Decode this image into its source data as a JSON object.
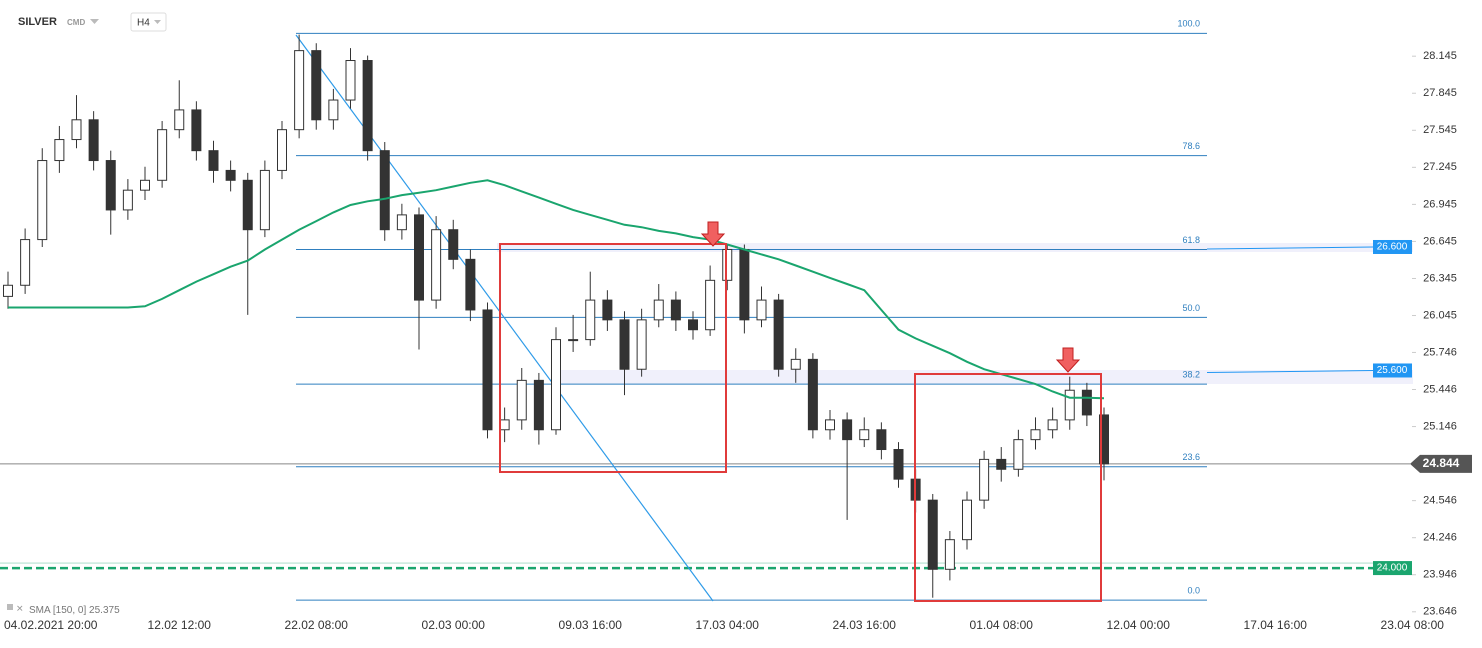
{
  "chart_data": {
    "type": "candlestick",
    "symbol": "SILVER",
    "market": "CMD",
    "timeframe": "H4",
    "x": [
      null,
      null,
      "04.02.2021 20:00",
      null,
      null,
      null,
      null,
      null,
      null,
      null,
      "12.02 12:00",
      null,
      null,
      null,
      null,
      null,
      null,
      null,
      "22.02 08:00",
      null,
      null,
      null,
      null,
      null,
      null,
      null,
      "02.03 00:00",
      null,
      null,
      null,
      null,
      null,
      null,
      null,
      "09.03 16:00",
      null,
      null,
      null,
      null,
      null,
      null,
      null,
      "17.03 04:00",
      null,
      null,
      null,
      null,
      null,
      null,
      null,
      "24.03 16:00",
      null,
      null,
      null,
      null,
      null,
      null,
      null,
      "01.04 08:00",
      null,
      null,
      null,
      null,
      null,
      null,
      null,
      "12.04 00:00",
      null,
      null,
      null,
      null,
      null,
      null,
      null,
      "17.04 16:00",
      null,
      null,
      null,
      null,
      null,
      null,
      null,
      "23.04 08:00"
    ],
    "open": [
      26.2,
      26.29,
      26.66,
      27.3,
      27.47,
      27.63,
      27.3,
      26.9,
      27.06,
      27.14,
      27.55,
      27.71,
      27.38,
      27.22,
      27.14,
      26.74,
      27.22,
      27.55,
      28.19,
      27.63,
      27.79,
      28.11,
      27.38,
      26.74,
      26.86,
      26.17,
      26.74,
      26.5,
      26.09,
      25.12,
      25.2,
      25.52,
      25.12,
      25.85,
      25.85,
      26.17,
      26.01,
      25.61,
      26.01,
      26.17,
      26.01,
      25.93,
      26.33,
      26.58,
      26.01,
      26.17,
      25.61,
      25.69,
      25.12,
      25.2,
      25.04,
      25.12,
      24.96,
      24.72,
      24.55,
      23.99,
      24.23,
      24.55,
      24.88,
      24.8,
      25.04,
      25.12,
      25.2,
      25.44,
      25.24,
      null,
      null,
      null,
      null,
      null,
      null,
      null,
      null,
      null,
      null,
      null,
      null,
      null,
      null,
      null,
      null,
      null,
      null
    ],
    "high": [
      26.4,
      26.75,
      27.4,
      27.58,
      27.83,
      27.7,
      27.38,
      27.15,
      27.25,
      27.62,
      27.95,
      27.78,
      27.46,
      27.3,
      27.2,
      27.3,
      27.62,
      28.32,
      28.25,
      27.88,
      28.21,
      28.15,
      27.45,
      26.95,
      26.92,
      26.85,
      26.82,
      26.58,
      26.15,
      25.3,
      25.62,
      25.58,
      25.95,
      26.05,
      26.4,
      26.25,
      26.08,
      26.1,
      26.3,
      26.24,
      26.08,
      26.45,
      26.62,
      26.62,
      26.28,
      26.22,
      25.78,
      25.74,
      25.28,
      25.26,
      25.22,
      25.18,
      25.02,
      24.8,
      24.6,
      24.3,
      24.62,
      24.95,
      24.98,
      25.12,
      25.22,
      25.3,
      25.55,
      25.5,
      25.3,
      null,
      null,
      null,
      null,
      null,
      null,
      null,
      null,
      null,
      null,
      null,
      null,
      null,
      null,
      null,
      null,
      null,
      null
    ],
    "low": [
      26.1,
      26.22,
      26.6,
      27.2,
      27.4,
      27.22,
      26.7,
      26.82,
      26.98,
      27.08,
      27.48,
      27.3,
      27.12,
      27.05,
      26.05,
      26.68,
      27.15,
      27.48,
      27.55,
      27.55,
      27.72,
      27.3,
      26.65,
      26.66,
      25.77,
      26.1,
      26.42,
      26.0,
      25.05,
      25.02,
      25.12,
      25.0,
      25.08,
      25.75,
      25.8,
      25.92,
      25.4,
      25.55,
      25.95,
      25.92,
      25.85,
      25.88,
      26.25,
      25.9,
      25.95,
      25.55,
      25.5,
      25.05,
      25.04,
      24.39,
      24.98,
      24.88,
      24.65,
      24.45,
      23.76,
      23.9,
      24.15,
      24.48,
      24.7,
      24.74,
      24.96,
      25.05,
      25.12,
      25.15,
      24.71,
      null,
      null,
      null,
      null,
      null,
      null,
      null,
      null,
      null,
      null,
      null,
      null,
      null,
      null,
      null,
      null,
      null,
      null
    ],
    "close": [
      26.29,
      26.66,
      27.3,
      27.47,
      27.63,
      27.3,
      26.9,
      27.06,
      27.14,
      27.55,
      27.71,
      27.38,
      27.22,
      27.14,
      26.74,
      27.22,
      27.55,
      28.19,
      27.63,
      27.79,
      28.11,
      27.38,
      26.74,
      26.86,
      26.17,
      26.74,
      26.5,
      26.09,
      25.12,
      25.2,
      25.52,
      25.12,
      25.85,
      25.85,
      26.17,
      26.01,
      25.61,
      26.01,
      26.17,
      26.01,
      25.93,
      26.33,
      26.58,
      26.01,
      26.17,
      25.61,
      25.69,
      25.12,
      25.2,
      25.04,
      25.12,
      24.96,
      24.72,
      24.55,
      23.99,
      24.23,
      24.55,
      24.88,
      24.8,
      25.04,
      25.12,
      25.2,
      25.44,
      25.24,
      24.844,
      null,
      null,
      null,
      null,
      null,
      null,
      null,
      null,
      null,
      null,
      null,
      null,
      null,
      null,
      null,
      null,
      null,
      null
    ],
    "up_color": "#ffffff",
    "down_color": "#333333",
    "ylim": [
      23.62,
      28.6
    ],
    "yticks": [
      28.145,
      27.845,
      27.545,
      27.245,
      26.945,
      26.645,
      26.345,
      26.045,
      25.746,
      25.446,
      25.146,
      24.546,
      24.246,
      23.946,
      23.646
    ],
    "series": [
      {
        "name": "SMA",
        "params": "[150, 0]",
        "color": "#1aa56e",
        "values": [
          26.11,
          26.11,
          26.11,
          26.11,
          26.11,
          26.11,
          26.11,
          26.11,
          26.12,
          26.18,
          26.25,
          26.32,
          26.38,
          26.44,
          26.49,
          26.58,
          26.66,
          26.74,
          26.81,
          26.88,
          26.94,
          26.97,
          26.99,
          27.02,
          27.04,
          27.06,
          27.09,
          27.12,
          27.14,
          27.1,
          27.05,
          27.0,
          26.95,
          26.9,
          26.86,
          26.82,
          26.78,
          26.76,
          26.73,
          26.71,
          26.68,
          26.66,
          26.62,
          26.58,
          26.54,
          26.5,
          26.45,
          26.4,
          26.35,
          26.3,
          26.25,
          26.09,
          25.93,
          25.86,
          25.8,
          25.74,
          25.67,
          25.61,
          25.57,
          25.53,
          25.49,
          25.43,
          25.38,
          25.38,
          25.375,
          null,
          null,
          null,
          null,
          null,
          null,
          null,
          null,
          null,
          null,
          null,
          null,
          null,
          null,
          null,
          null,
          null,
          null
        ]
      }
    ],
    "fib": {
      "color": "#2f7fbf",
      "labels": [
        "100.0",
        "78.6",
        "61.8",
        "50.0",
        "38.2",
        "23.6",
        "0.0"
      ],
      "prices": [
        28.33,
        27.34,
        26.58,
        26.03,
        25.49,
        24.82,
        23.74
      ]
    },
    "levels": [
      {
        "value": 26.6,
        "label": "26.600",
        "color": "#2196f3"
      },
      {
        "value": 25.6,
        "label": "25.600",
        "color": "#2196f3"
      },
      {
        "value": 24.0,
        "label": "24.000",
        "color": "#1aa56e"
      }
    ]
  }
}
